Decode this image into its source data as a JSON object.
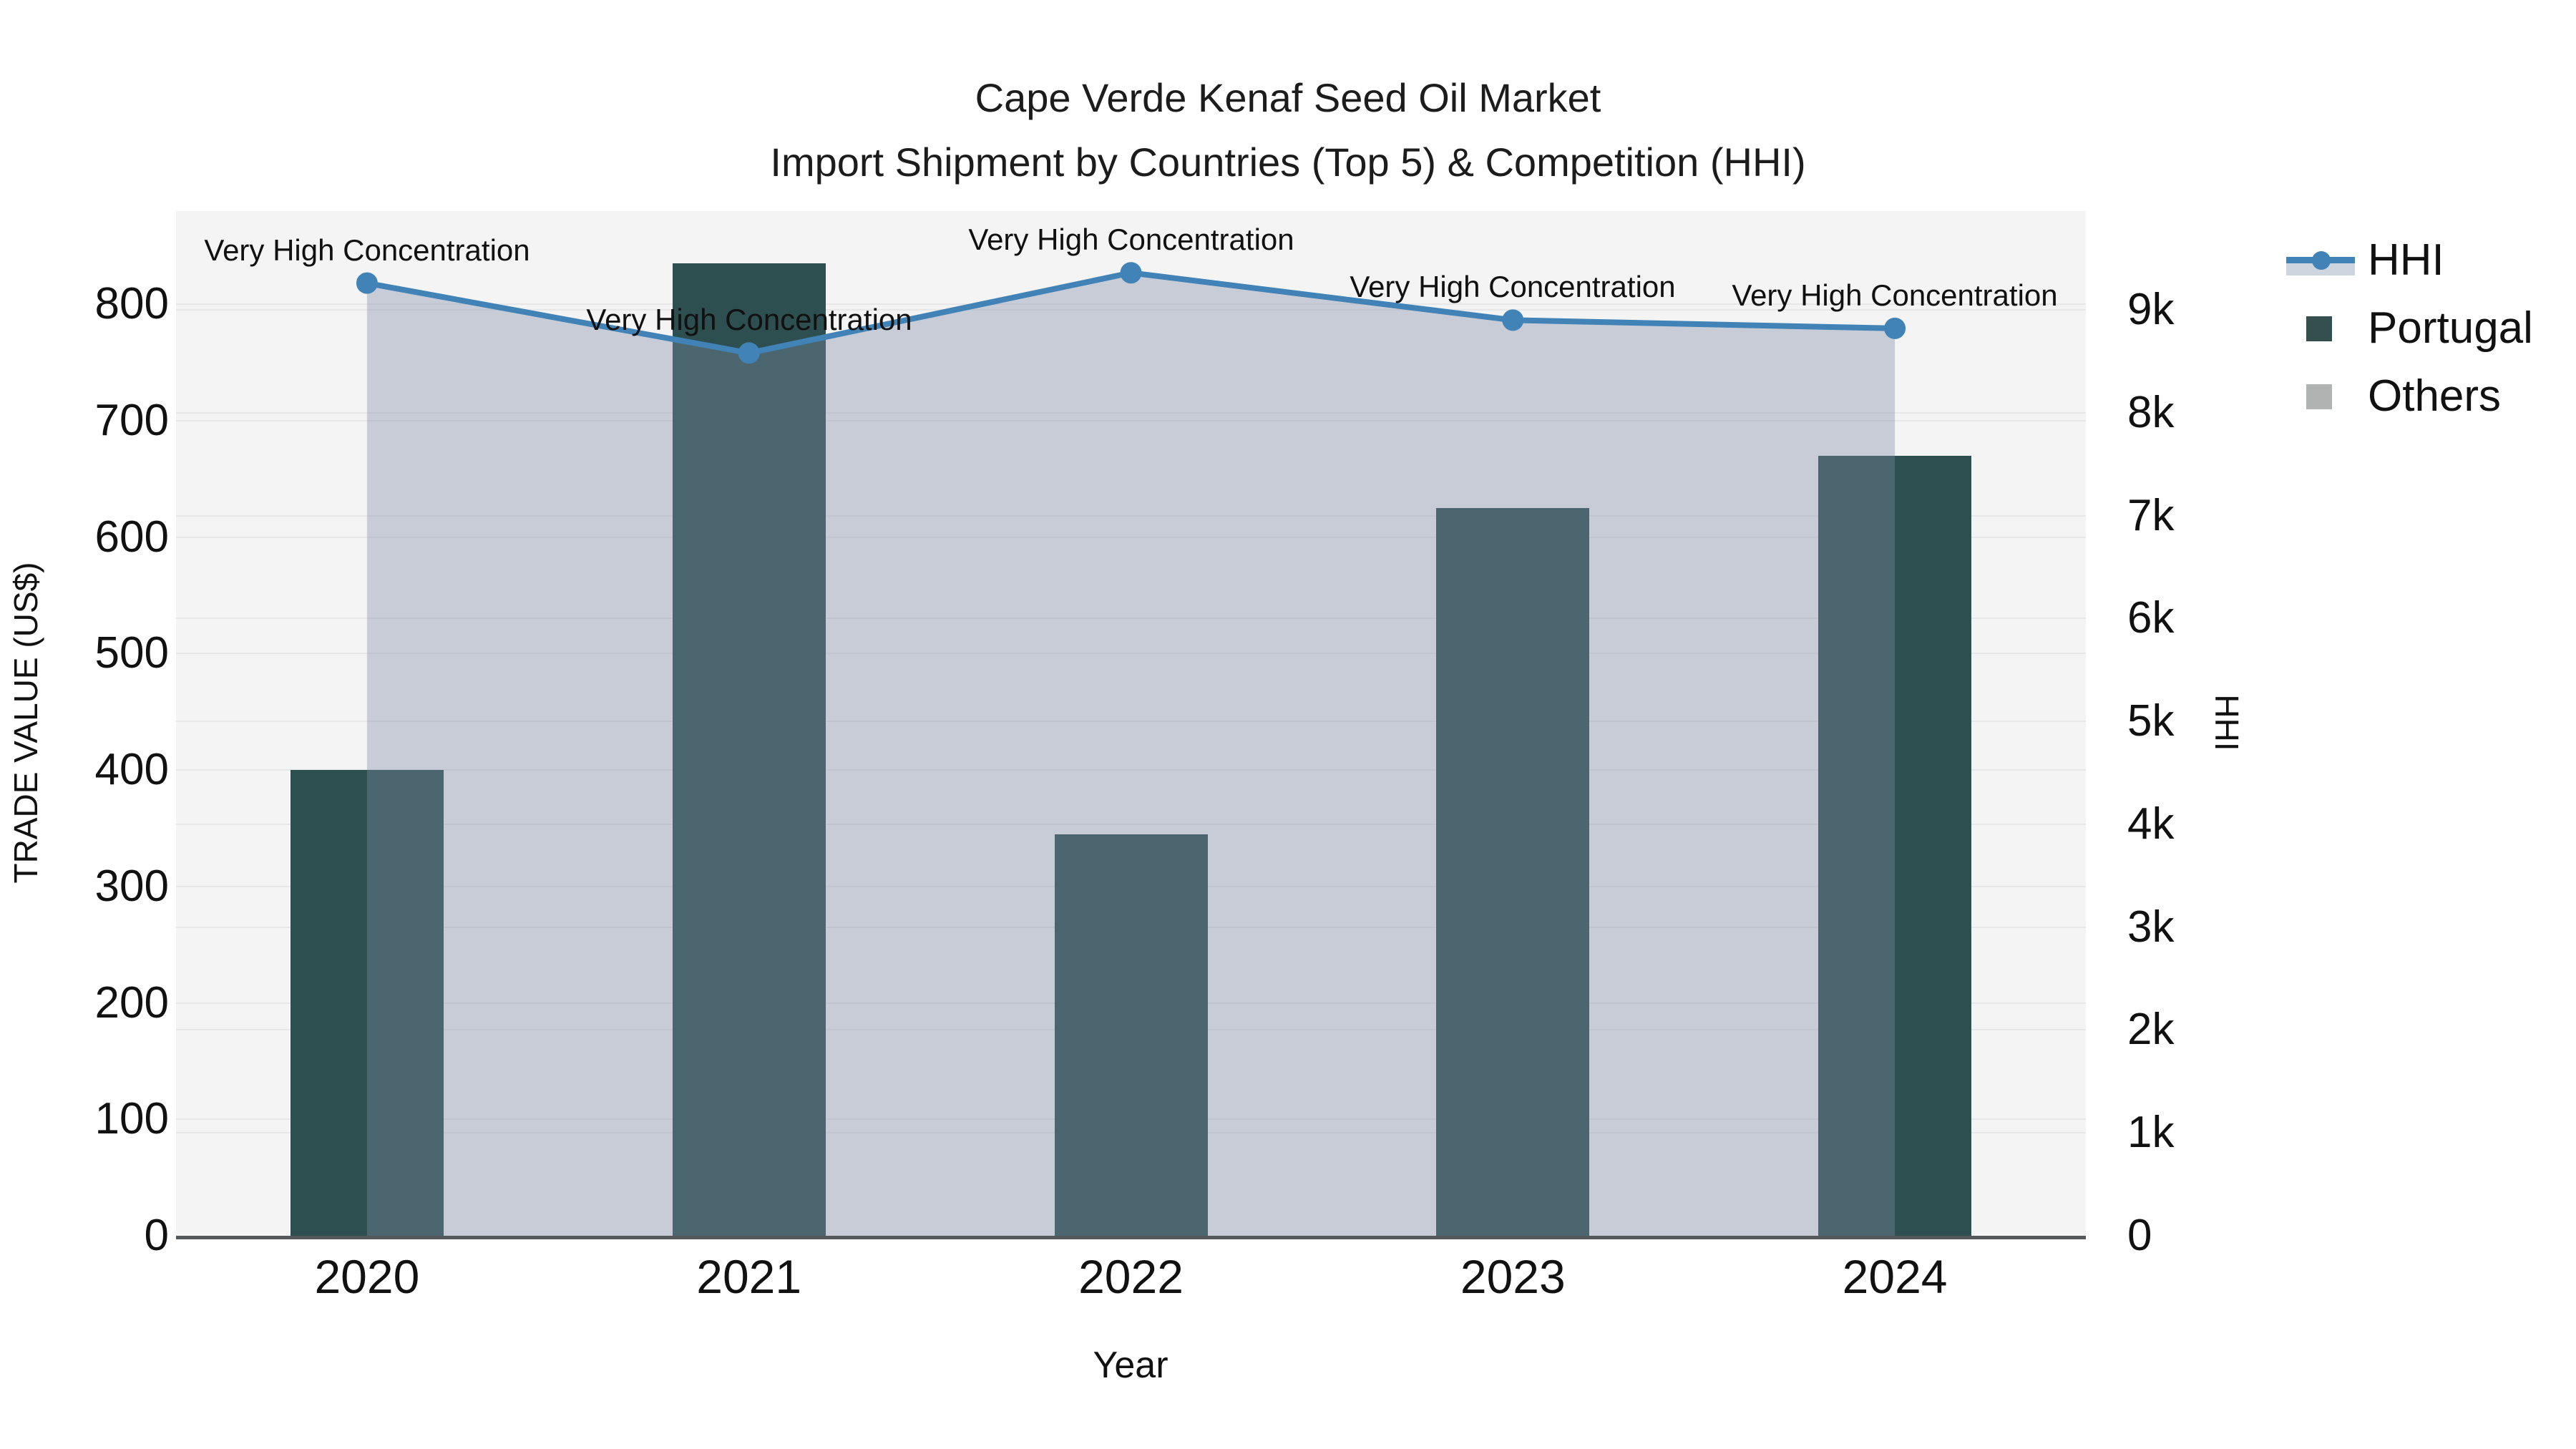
{
  "figure": {
    "title_line1": "Cape Verde Kenaf Seed Oil Market",
    "title_line2": "Import Shipment by Countries (Top 5) & Competition (HHI)"
  },
  "axes": {
    "x_title": "Year",
    "y_left_title": "TRADE VALUE (US$)",
    "y_right_title": "HHI",
    "y_left_ticks": [
      {
        "label": "0",
        "value": 0
      },
      {
        "label": "100",
        "value": 100
      },
      {
        "label": "200",
        "value": 200
      },
      {
        "label": "300",
        "value": 300
      },
      {
        "label": "400",
        "value": 400
      },
      {
        "label": "500",
        "value": 500
      },
      {
        "label": "600",
        "value": 600
      },
      {
        "label": "700",
        "value": 700
      },
      {
        "label": "800",
        "value": 800
      }
    ],
    "y_right_ticks": [
      {
        "label": "0",
        "value": 0
      },
      {
        "label": "1k",
        "value": 1000
      },
      {
        "label": "2k",
        "value": 2000
      },
      {
        "label": "3k",
        "value": 3000
      },
      {
        "label": "4k",
        "value": 4000
      },
      {
        "label": "5k",
        "value": 5000
      },
      {
        "label": "6k",
        "value": 6000
      },
      {
        "label": "7k",
        "value": 7000
      },
      {
        "label": "8k",
        "value": 8000
      },
      {
        "label": "9k",
        "value": 9000
      }
    ]
  },
  "legend": [
    {
      "label": "HHI",
      "type": "line",
      "color": "#4183b6",
      "band_color": "#cfd5de"
    },
    {
      "label": "Portugal",
      "type": "swatch",
      "color": "#33504f"
    },
    {
      "label": "Others",
      "type": "swatch",
      "color": "#b1b2b2"
    }
  ],
  "colors": {
    "portugal_bar": "#2e4f4f",
    "others_legend": "#b1b2b2",
    "hhi_line": "#4183b6",
    "hhi_area_fill": "rgba(126,139,166,0.38)",
    "plot_background": "#f4f4f4",
    "gridline": "#e7e7ea",
    "axis_line": "#54585a"
  },
  "chart_data": {
    "type": "combo-bar-line",
    "title": "Cape Verde Kenaf Seed Oil Market — Import Shipment by Countries (Top 5) & Competition (HHI)",
    "categories": [
      "2020",
      "2021",
      "2022",
      "2023",
      "2024"
    ],
    "series": [
      {
        "name": "Portugal",
        "type": "bar",
        "axis": "left",
        "values": [
          400,
          835,
          345,
          625,
          670
        ]
      },
      {
        "name": "Others",
        "type": "bar",
        "axis": "left",
        "values": [
          0,
          0,
          0,
          0,
          0
        ],
        "note": "legend entry shown; no Others bars visibly above zero"
      },
      {
        "name": "HHI",
        "type": "line-with-area-fill",
        "axis": "right",
        "values": [
          9260,
          8580,
          9360,
          8900,
          8820
        ]
      }
    ],
    "annotations": [
      {
        "category": "2020",
        "text": "Very High Concentration"
      },
      {
        "category": "2021",
        "text": "Very High Concentration"
      },
      {
        "category": "2022",
        "text": "Very High Concentration"
      },
      {
        "category": "2023",
        "text": "Very High Concentration"
      },
      {
        "category": "2024",
        "text": "Very High Concentration"
      }
    ],
    "xlabel": "Year",
    "ylabel_left": "TRADE VALUE (US$)",
    "ylabel_right": "HHI",
    "ylim_left": [
      0,
      880
    ],
    "ylim_right": [
      0,
      9960
    ],
    "grid": true,
    "legend_position": "top-right-outside"
  }
}
